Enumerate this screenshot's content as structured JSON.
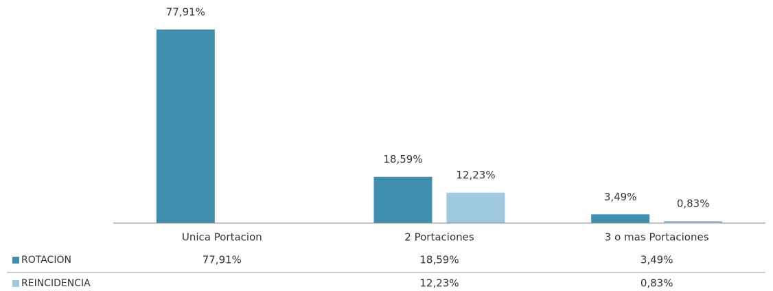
{
  "chart_data": {
    "type": "bar",
    "categories": [
      "Unica Portacion",
      "2 Portaciones",
      "3 o mas Portaciones"
    ],
    "series": [
      {
        "name": "ROTACION",
        "color": "#418fae",
        "values": [
          77.91,
          18.59,
          3.49
        ],
        "value_labels": [
          "77,91%",
          "18,59%",
          "3,49%"
        ]
      },
      {
        "name": "REINCIDENCIA",
        "color": "#9fc9de",
        "values": [
          null,
          12.23,
          0.83
        ],
        "value_labels": [
          null,
          "12,23%",
          "0,83%"
        ]
      }
    ]
  }
}
